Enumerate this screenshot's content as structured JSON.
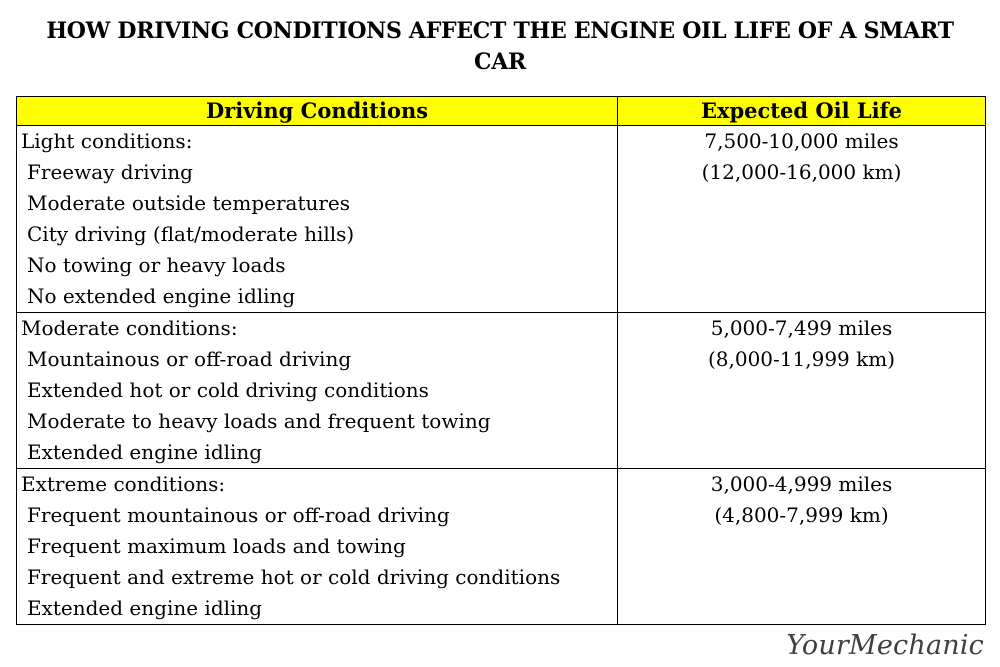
{
  "title": "HOW DRIVING CONDITIONS AFFECT THE ENGINE OIL LIFE OF A SMART CAR",
  "table": {
    "header_color": "#ffff00",
    "headers": {
      "conditions": "Driving Conditions",
      "oil_life": "Expected Oil Life"
    },
    "rows": [
      {
        "category": "Light conditions:",
        "items": [
          "Freeway driving",
          "Moderate outside temperatures",
          "City driving (flat/moderate hills)",
          "No towing or heavy loads",
          "No extended engine idling"
        ],
        "miles": "7,500-10,000 miles",
        "km": "(12,000-16,000 km)"
      },
      {
        "category": "Moderate conditions:",
        "items": [
          "Mountainous or off-road driving",
          "Extended hot or cold driving conditions",
          "Moderate to heavy loads and frequent towing",
          "Extended engine idling"
        ],
        "miles": "5,000-7,499 miles",
        "km": "(8,000-11,999 km)"
      },
      {
        "category": "Extreme conditions:",
        "items": [
          "Frequent mountainous or off-road driving",
          "Frequent maximum loads and towing",
          "Frequent and extreme hot or cold driving conditions",
          "Extended engine idling"
        ],
        "miles": "3,000-4,999 miles",
        "km": "(4,800-7,999 km)"
      }
    ]
  },
  "logo": {
    "text": "YourMechanic"
  }
}
